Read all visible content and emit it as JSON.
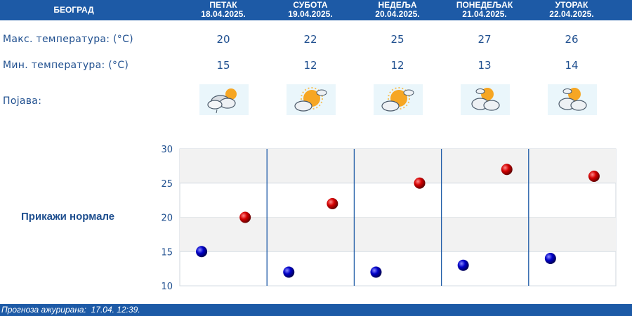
{
  "header": {
    "city": "БЕОГРАД",
    "days": [
      {
        "name": "ПЕТАК",
        "date": "18.04.2025."
      },
      {
        "name": "СУБОТА",
        "date": "19.04.2025."
      },
      {
        "name": "НЕДЕЉА",
        "date": "20.04.2025."
      },
      {
        "name": "ПОНЕДЕЉАК",
        "date": "21.04.2025."
      },
      {
        "name": "УТОРАК",
        "date": "22.04.2025."
      }
    ]
  },
  "rows": {
    "max_label": "Макс. температура: (°C)",
    "min_label": "Мин. температура: (°C)",
    "phenomenon_label": "Појава:"
  },
  "forecast": {
    "max": [
      "20",
      "22",
      "25",
      "27",
      "26"
    ],
    "min": [
      "15",
      "12",
      "12",
      "13",
      "14"
    ],
    "icons": [
      "partly-cloudy-drizzle-icon",
      "sun-behind-clouds-icon",
      "sun-behind-clouds-icon",
      "partly-sunny-clouds-icon",
      "partly-sunny-clouds-icon"
    ]
  },
  "toggle_label": "Прикажи нормале",
  "chart_data": {
    "type": "scatter",
    "categories": [
      "18.04.2025.",
      "19.04.2025.",
      "20.04.2025.",
      "21.04.2025.",
      "22.04.2025."
    ],
    "series": [
      {
        "values": [
          20,
          22,
          25,
          27,
          26
        ],
        "color": "#cc0000"
      },
      {
        "values": [
          15,
          12,
          12,
          13,
          14
        ],
        "color": "#0000aa"
      }
    ],
    "ylim": [
      10,
      30
    ],
    "yticks": [
      30,
      25,
      20,
      15,
      10
    ],
    "grid": true
  },
  "colors": {
    "header_bg": "#1d5aa6",
    "text_blue": "#1f4f8f",
    "band_gray": "#f2f2f2",
    "separator": "#1d5aa6"
  },
  "footer": {
    "updated_label": "Прогноза ажурирана:",
    "updated_value": "17.04. 12:39."
  }
}
